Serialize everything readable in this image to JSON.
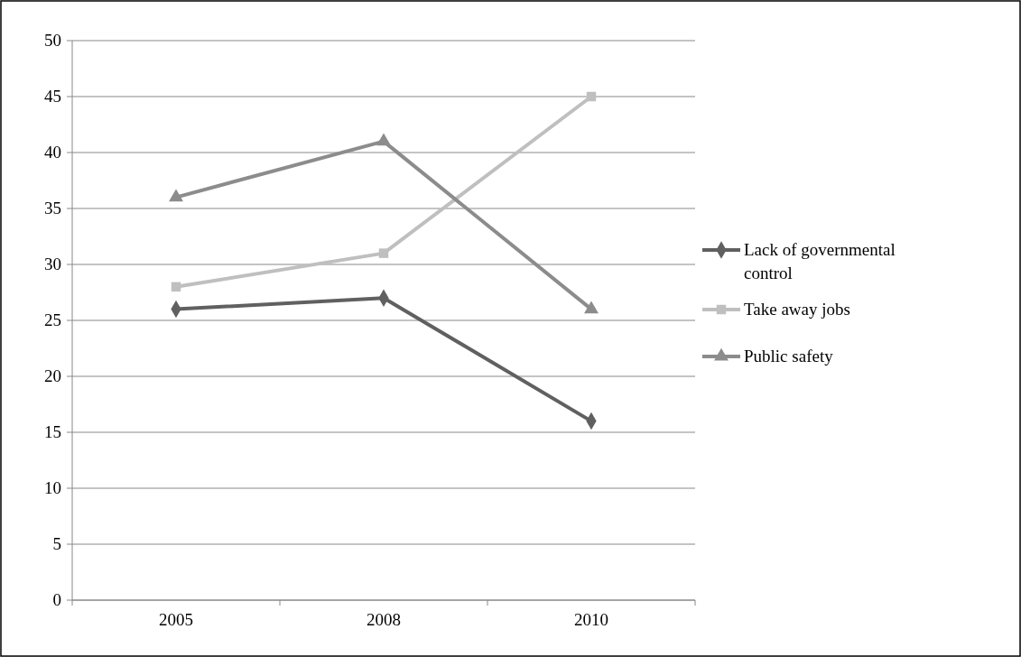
{
  "chart_data": {
    "type": "line",
    "categories": [
      "2005",
      "2008",
      "2010"
    ],
    "series": [
      {
        "name": "Lack of governmental control",
        "color": "#606060",
        "values": [
          26,
          27,
          16
        ],
        "marker": "diamond"
      },
      {
        "name": "Take away jobs",
        "color": "#bfbfbf",
        "values": [
          28,
          31,
          45
        ],
        "marker": "square"
      },
      {
        "name": "Public safety",
        "color": "#8c8c8c",
        "values": [
          36,
          41,
          26
        ],
        "marker": "triangle"
      }
    ],
    "ylim": [
      0,
      50
    ],
    "yticks": [
      0,
      5,
      10,
      15,
      20,
      25,
      30,
      35,
      40,
      45,
      50
    ],
    "grid": "y",
    "legend": "right",
    "line_style": "solid"
  }
}
